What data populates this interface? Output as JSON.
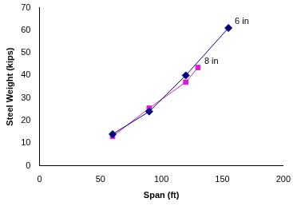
{
  "chart_data": {
    "type": "line",
    "x_label": "Span (ft)",
    "y_label": "Steel Weight (kips)",
    "series": [
      {
        "name": "6 in",
        "color": "#000080",
        "marker": "diamond",
        "x": [
          60,
          90,
          120,
          155
        ],
        "values": [
          14,
          24,
          40,
          61
        ]
      },
      {
        "name": "8 in",
        "color": "#d81bd0",
        "marker": "square",
        "x": [
          60,
          90,
          120,
          130
        ],
        "values": [
          13,
          25.5,
          37,
          43.5
        ]
      }
    ],
    "xlim": [
      0,
      200
    ],
    "xticks": [
      0,
      50,
      100,
      150,
      200
    ],
    "ylim": [
      0,
      70
    ],
    "yticks": [
      0,
      10,
      20,
      30,
      40,
      50,
      60,
      70
    ],
    "grid": false
  }
}
